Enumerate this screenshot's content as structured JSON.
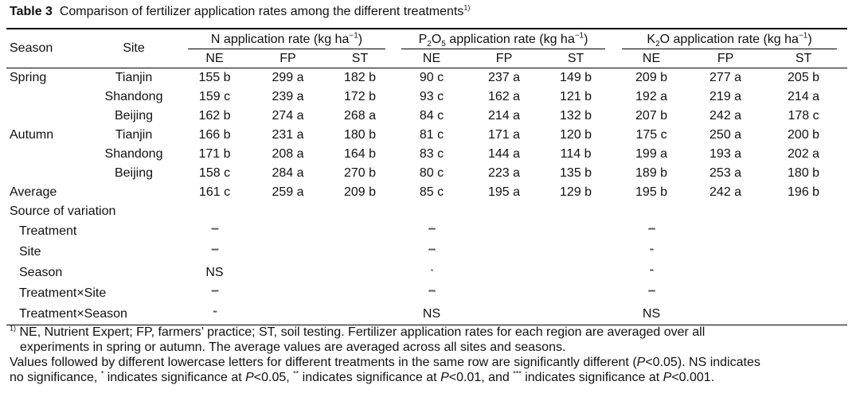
{
  "title": {
    "label": "Table 3",
    "text": "Comparison of fertilizer application rates among the different treatments",
    "note_marker": "1)"
  },
  "header": {
    "season": "Season",
    "site": "Site",
    "n_group": "N application rate (kg ha",
    "p_group_pre": "P",
    "p_group_sub1": "2",
    "p_group_mid": "O",
    "p_group_sub2": "5",
    "p_group_post": " application rate (kg ha",
    "k_group_pre": "K",
    "k_group_sub": "2",
    "k_group_post": "O application rate (kg ha",
    "unit_exp": "−1",
    "close": ")",
    "sub_cols": [
      "NE",
      "FP",
      "ST",
      "NE",
      "FP",
      "ST",
      "NE",
      "FP",
      "ST"
    ]
  },
  "rows": [
    {
      "season": "Spring",
      "site": "Tianjin",
      "v": [
        "155 b",
        "299 a",
        "182 b",
        "90 c",
        "237 a",
        "149 b",
        "209 b",
        "277 a",
        "205 b"
      ]
    },
    {
      "season": "",
      "site": "Shandong",
      "v": [
        "159 c",
        "239 a",
        "172 b",
        "93 c",
        "162 a",
        "121 b",
        "192 a",
        "219 a",
        "214 a"
      ]
    },
    {
      "season": "",
      "site": "Beijing",
      "v": [
        "162 b",
        "274 a",
        "268 a",
        "84 c",
        "214 a",
        "132 b",
        "207 b",
        "242 a",
        "178 c"
      ]
    },
    {
      "season": "Autumn",
      "site": "Tianjin",
      "v": [
        "166 b",
        "231 a",
        "180 b",
        "81 c",
        "171 a",
        "120 b",
        "175 c",
        "250 a",
        "200 b"
      ]
    },
    {
      "season": "",
      "site": "Shandong",
      "v": [
        "171 b",
        "208 a",
        "164 b",
        "83 c",
        "144 a",
        "114 b",
        "199 a",
        "193 a",
        "202 a"
      ]
    },
    {
      "season": "",
      "site": "Beijing",
      "v": [
        "158 c",
        "284 a",
        "270 b",
        "80 c",
        "223 a",
        "135 b",
        "189 b",
        "253 a",
        "180 b"
      ]
    },
    {
      "season": "Average",
      "site": "",
      "v": [
        "161 c",
        "259 a",
        "209 b",
        "85 c",
        "195 a",
        "129 b",
        "195 b",
        "242 a",
        "196 b"
      ]
    }
  ],
  "variation": {
    "heading": "Source of variation",
    "rows": [
      {
        "label": "Treatment",
        "n": "****",
        "p": "****",
        "k": "****"
      },
      {
        "label": "Site",
        "n": "****",
        "p": "****",
        "k": "**"
      },
      {
        "label": "Season",
        "n": "NS",
        "p": "*",
        "k": "**"
      },
      {
        "label": "Treatment×Site",
        "n": "****",
        "p": "****",
        "k": "****"
      },
      {
        "label": "Treatment×Season",
        "n": "**",
        "p": "NS",
        "k": "NS"
      }
    ]
  },
  "footnote": {
    "marker": "1)",
    "line1": " NE, Nutrient Expert; FP, farmers’ practice; ST, soil testing.  Fertilizer application rates for each region are averaged over all",
    "line2": "experiments in spring or autumn.  The average values are averaged across all sites and seasons.",
    "line3a": "Values followed by different lowercase letters for different treatments in the same row are significantly different (",
    "p": "P",
    "line3b": "<0.05).  NS indicates",
    "line4a": "no significance, ",
    "star1": "*",
    "line4b": " indicates significance at ",
    "line4c": "<0.05, ",
    "star2": "**",
    "line4d": " indicates significance at ",
    "line4e": "<0.01, and ",
    "star3": "***",
    "line4f": " indicates significance at ",
    "line4g": "<0.001."
  }
}
